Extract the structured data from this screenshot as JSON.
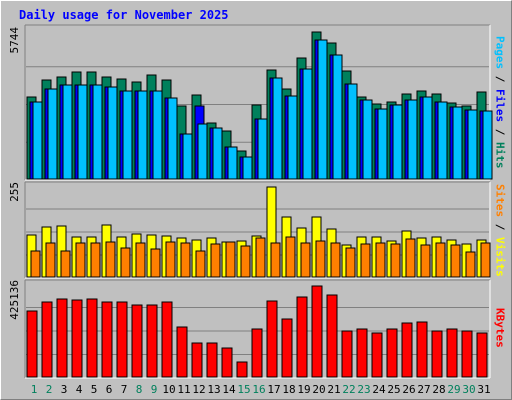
{
  "title": "Daily usage for November 2025",
  "colors": {
    "hits": "#00805c",
    "files": "#0000ff",
    "pages": "#00c0ff",
    "visits": "#ffff00",
    "sites": "#ff8000",
    "kbytes": "#ff0000",
    "weekend_day": "#00805c",
    "weekday_day": "#000000"
  },
  "right_labels": {
    "top": {
      "pages": "Pages",
      "files": "Files",
      "hits": "Hits",
      "sep": " / "
    },
    "mid": {
      "sites": "Sites",
      "visits": "Visits",
      "sep": " / "
    },
    "bottom": {
      "kbytes": "KBytes"
    }
  },
  "chart_data": [
    {
      "type": "bar",
      "panel": "hits-files-pages",
      "max_label": "5744",
      "ylim": [
        0,
        5744
      ],
      "categories": [
        "1",
        "2",
        "3",
        "4",
        "5",
        "6",
        "7",
        "8",
        "9",
        "10",
        "11",
        "12",
        "13",
        "14",
        "15",
        "16",
        "17",
        "18",
        "19",
        "20",
        "21",
        "22",
        "23",
        "24",
        "25",
        "26",
        "27",
        "28",
        "29",
        "30",
        "31"
      ],
      "series": [
        {
          "name": "Hits",
          "values": [
            3180,
            3810,
            3940,
            4140,
            4140,
            3940,
            3870,
            3750,
            3990,
            3810,
            2810,
            3240,
            2160,
            1860,
            1080,
            2870,
            4200,
            3480,
            4670,
            5660,
            5250,
            4170,
            3180,
            2900,
            2970,
            3290,
            3390,
            3270,
            2930,
            2820,
            3360
          ]
        },
        {
          "name": "Files",
          "values": [
            2980,
            3480,
            3630,
            3630,
            3630,
            3560,
            3400,
            3390,
            3380,
            3110,
            1750,
            2820,
            1950,
            1250,
            850,
            2310,
            3880,
            3190,
            4250,
            5340,
            4790,
            3670,
            3030,
            2690,
            2840,
            3030,
            3180,
            2980,
            2790,
            2670,
            2610
          ]
        },
        {
          "name": "Pages",
          "values": [
            2980,
            3480,
            3630,
            3630,
            3630,
            3560,
            3400,
            3390,
            3380,
            3110,
            1750,
            2110,
            1950,
            1250,
            850,
            2310,
            3880,
            3190,
            4250,
            5340,
            4790,
            3670,
            3030,
            2690,
            2840,
            3030,
            3180,
            2980,
            2790,
            2670,
            2610
          ]
        }
      ]
    },
    {
      "type": "bar",
      "panel": "visits-sites",
      "max_label": "255",
      "ylim": [
        0,
        255
      ],
      "categories": [
        "1",
        "2",
        "3",
        "4",
        "5",
        "6",
        "7",
        "8",
        "9",
        "10",
        "11",
        "12",
        "13",
        "14",
        "15",
        "16",
        "17",
        "18",
        "19",
        "20",
        "21",
        "22",
        "23",
        "24",
        "25",
        "26",
        "27",
        "28",
        "29",
        "30",
        "31"
      ],
      "series": [
        {
          "name": "Visits",
          "values": [
            118,
            141,
            145,
            112,
            113,
            147,
            112,
            121,
            118,
            117,
            111,
            106,
            110,
            98,
            103,
            115,
            255,
            170,
            140,
            170,
            137,
            91,
            113,
            113,
            102,
            129,
            111,
            114,
            105,
            94,
            104
          ]
        },
        {
          "name": "Sites",
          "values": [
            74,
            97,
            75,
            97,
            95,
            99,
            82,
            95,
            79,
            99,
            95,
            75,
            93,
            100,
            88,
            111,
            95,
            113,
            96,
            101,
            97,
            81,
            93,
            97,
            93,
            107,
            92,
            97,
            91,
            70,
            95
          ]
        }
      ]
    },
    {
      "type": "bar",
      "panel": "kbytes",
      "max_label": "425136",
      "ylim": [
        0,
        425136
      ],
      "categories": [
        "1",
        "2",
        "3",
        "4",
        "5",
        "6",
        "7",
        "8",
        "9",
        "10",
        "11",
        "12",
        "13",
        "14",
        "15",
        "16",
        "17",
        "18",
        "19",
        "20",
        "21",
        "22",
        "23",
        "24",
        "25",
        "26",
        "27",
        "28",
        "29",
        "30",
        "31"
      ],
      "series": [
        {
          "name": "KBytes",
          "values": [
            305000,
            345000,
            362000,
            354000,
            362000,
            345000,
            345000,
            332000,
            332000,
            345000,
            233000,
            158000,
            158000,
            132000,
            70000,
            220000,
            352000,
            268000,
            371000,
            420000,
            378000,
            214000,
            220000,
            202000,
            220000,
            250000,
            253000,
            214000,
            220000,
            214000,
            202000
          ]
        }
      ]
    }
  ],
  "days": [
    "1",
    "2",
    "3",
    "4",
    "5",
    "6",
    "7",
    "8",
    "9",
    "10",
    "11",
    "12",
    "13",
    "14",
    "15",
    "16",
    "17",
    "18",
    "19",
    "20",
    "21",
    "22",
    "23",
    "24",
    "25",
    "26",
    "27",
    "28",
    "29",
    "30",
    "31"
  ],
  "weekend_days": [
    1,
    2,
    8,
    9,
    15,
    16,
    22,
    23,
    29,
    30
  ]
}
